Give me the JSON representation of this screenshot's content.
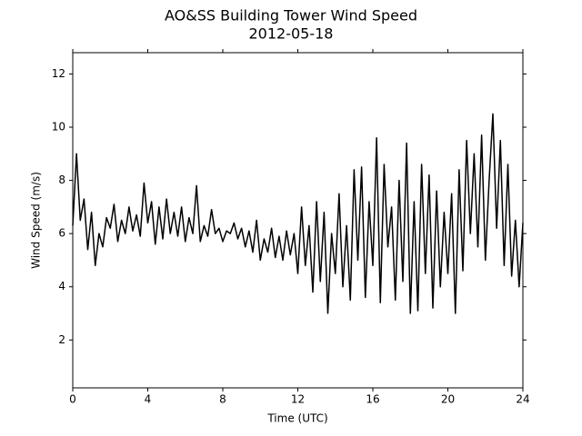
{
  "chart_data": {
    "type": "line",
    "title": "AO&SS Building Tower Wind Speed",
    "subtitle": "2012-05-18",
    "x_label": "Time (UTC)",
    "y_label": "Wind Speed (m/s)",
    "color": "#000000",
    "xlim": [
      0,
      24
    ],
    "xticks": [
      0,
      4,
      8,
      12,
      16,
      20,
      24
    ],
    "ylim": [
      0.2,
      12.8
    ],
    "yticks": [
      2,
      4,
      6,
      8,
      10,
      12
    ],
    "x": [
      0,
      0.2,
      0.4,
      0.6,
      0.8,
      1,
      1.2,
      1.4,
      1.6,
      1.8,
      2,
      2.2,
      2.4,
      2.6,
      2.8,
      3,
      3.2,
      3.4,
      3.6,
      3.8,
      4,
      4.2,
      4.4,
      4.6,
      4.8,
      5,
      5.2,
      5.4,
      5.6,
      5.8,
      6,
      6.2,
      6.4,
      6.6,
      6.8,
      7,
      7.2,
      7.4,
      7.6,
      7.8,
      8,
      8.2,
      8.4,
      8.6,
      8.8,
      9,
      9.2,
      9.4,
      9.6,
      9.8,
      10,
      10.2,
      10.4,
      10.6,
      10.8,
      11,
      11.2,
      11.4,
      11.6,
      11.8,
      12,
      12.2,
      12.4,
      12.6,
      12.8,
      13,
      13.2,
      13.4,
      13.6,
      13.8,
      14,
      14.2,
      14.4,
      14.6,
      14.8,
      15,
      15.2,
      15.4,
      15.6,
      15.8,
      16,
      16.2,
      16.4,
      16.6,
      16.8,
      17,
      17.2,
      17.4,
      17.6,
      17.8,
      18,
      18.2,
      18.4,
      18.6,
      18.8,
      19,
      19.2,
      19.4,
      19.6,
      19.8,
      20,
      20.2,
      20.4,
      20.6,
      20.8,
      21,
      21.2,
      21.4,
      21.6,
      21.8,
      22,
      22.2,
      22.4,
      22.6,
      22.8,
      23,
      23.2,
      23.4,
      23.6,
      23.8,
      24
    ],
    "values": [
      6.3,
      9.0,
      6.5,
      7.3,
      5.4,
      6.8,
      4.8,
      6.0,
      5.5,
      6.6,
      6.2,
      7.1,
      5.7,
      6.5,
      6.0,
      7.0,
      6.1,
      6.7,
      5.9,
      7.9,
      6.4,
      7.2,
      5.6,
      7.0,
      5.8,
      7.3,
      6.0,
      6.8,
      5.9,
      7.0,
      5.7,
      6.6,
      6.0,
      7.8,
      5.7,
      6.3,
      5.9,
      6.9,
      6.0,
      6.2,
      5.7,
      6.1,
      6.0,
      6.4,
      5.8,
      6.2,
      5.5,
      6.1,
      5.3,
      6.5,
      5.0,
      5.8,
      5.3,
      6.2,
      5.1,
      5.9,
      5.0,
      6.1,
      5.2,
      6.0,
      4.5,
      7.0,
      4.8,
      6.3,
      3.8,
      7.2,
      4.2,
      6.8,
      3.0,
      6.0,
      4.5,
      7.5,
      4.0,
      6.3,
      3.5,
      8.4,
      5.0,
      8.5,
      3.6,
      7.2,
      4.8,
      9.6,
      3.4,
      8.6,
      5.5,
      7.0,
      3.5,
      8.0,
      4.2,
      9.4,
      3.0,
      7.2,
      3.1,
      8.6,
      4.5,
      8.2,
      3.2,
      7.6,
      4.0,
      6.8,
      4.5,
      7.5,
      3.0,
      8.4,
      4.6,
      9.5,
      6.0,
      9.0,
      5.5,
      9.7,
      5.0,
      8.0,
      10.5,
      6.2,
      9.5,
      4.8,
      8.6,
      4.4,
      6.5,
      4.0,
      6.4
    ]
  }
}
